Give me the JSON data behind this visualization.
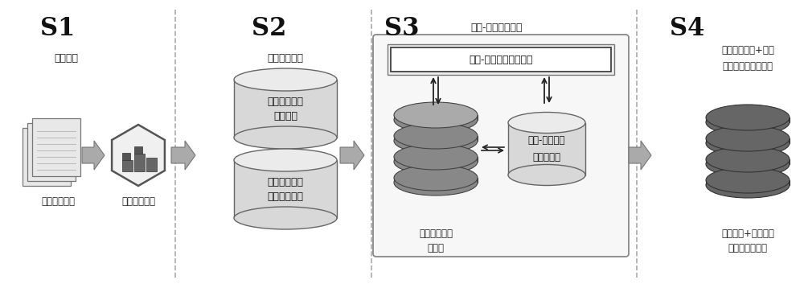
{
  "bg_color": "#ffffff",
  "sections": [
    "S1",
    "S2",
    "S3",
    "S4"
  ],
  "s1_title": "条款搜集",
  "s2_title": "条款解析处理",
  "s3_title": "条款-险种产品匹配",
  "s4_subtitle_top": "生成条款解析+险种",
  "s4_subtitle_bot": "产品全量信息数据库",
  "s1_label": "人身险条款库",
  "s1_engine_label": "条款解析引擎",
  "s2_db1_label1": "条款结构化解",
  "s2_db1_label2": "析知识库",
  "s2_db2_label1": "保额计算及责",
  "s2_db2_label2": "任定义规则库",
  "s3_engine_label": "条款-险种信息匹配引擎",
  "s3_db_left_label1": "条款解析结果",
  "s3_db_left_label2": "数据库",
  "s3_db_right_label1": "条款-险种产品",
  "s3_db_right_label2": "对照规则库",
  "s4_db_label1": "条款解析+险种产品",
  "s4_db_label2": "全量信息数据库",
  "text_color": "#222222",
  "arrow_gray": "#999999",
  "dashed_color": "#aaaaaa",
  "db_light": "#d8d8d8",
  "db_dark": "#888888",
  "db_darker": "#666666",
  "hex_fill": "#f0f0f0",
  "hex_edge": "#555555"
}
